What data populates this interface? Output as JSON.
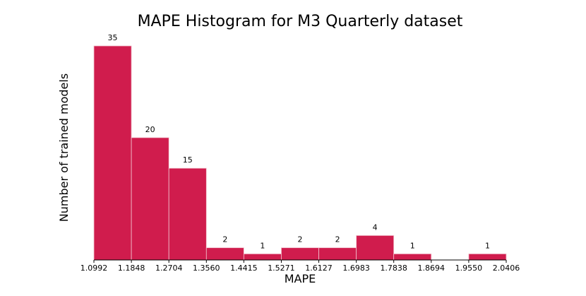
{
  "chart_data": {
    "type": "bar",
    "title": "MAPE Histogram for M3 Quarterly dataset",
    "xlabel": "MAPE",
    "ylabel": "Number of trained models",
    "bin_edges": [
      "1.0992",
      "1.1848",
      "1.2704",
      "1.3560",
      "1.4415",
      "1.5271",
      "1.6127",
      "1.6983",
      "1.7838",
      "1.8694",
      "1.9550",
      "2.0406"
    ],
    "values": [
      35,
      20,
      15,
      2,
      1,
      2,
      2,
      4,
      1,
      0,
      1
    ],
    "data_labels": [
      "35",
      "20",
      "15",
      "2",
      "1",
      "2",
      "2",
      "4",
      "1",
      "",
      "1"
    ],
    "ylim": [
      0,
      35
    ],
    "bar_color": "#d01c4d",
    "bar_edge_color": "#f2c4cf",
    "axis_color": "#000000",
    "grid": false
  }
}
